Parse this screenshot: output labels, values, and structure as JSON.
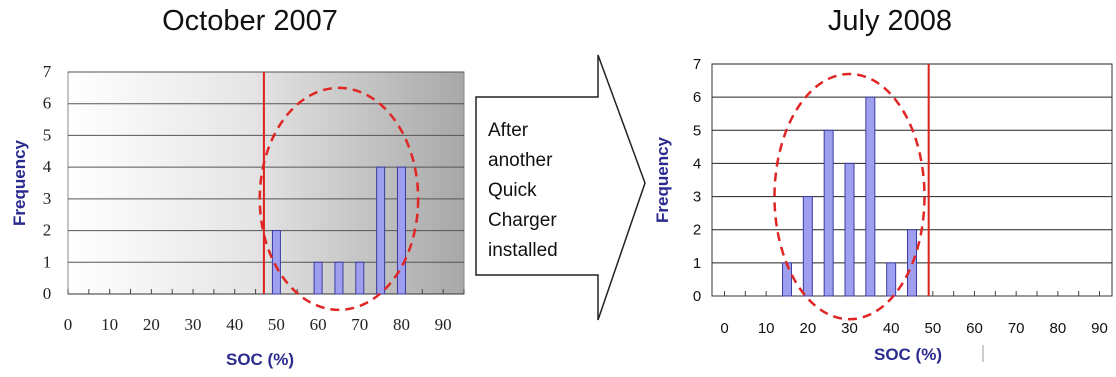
{
  "arrow_text": [
    "After",
    "another",
    "Quick",
    "Charger",
    "installed"
  ],
  "colors": {
    "bar_fill": "#9f9ff0",
    "bar_stroke": "#3b3ba0",
    "threshold": "#e0201b",
    "ellipse": "#e02525",
    "axis_label": "#2b2b8f"
  },
  "chart_data": [
    {
      "type": "bar",
      "title": "October 2007",
      "xlabel": "SOC (%)",
      "ylabel": "Frequency",
      "x": [
        50,
        60,
        65,
        70,
        75,
        80
      ],
      "values": [
        2,
        1,
        1,
        1,
        4,
        4
      ],
      "xticks": [
        0,
        10,
        20,
        30,
        40,
        50,
        60,
        70,
        80,
        90
      ],
      "yticks": [
        0,
        1,
        2,
        3,
        4,
        5,
        6,
        7
      ],
      "xlim": [
        0,
        95
      ],
      "ylim": [
        0,
        7
      ],
      "threshold_x": 47,
      "highlight_ellipse": {
        "cx": 65,
        "cy": 3,
        "rx": 19,
        "ry": 3.5
      },
      "background": "gradient white to gray",
      "grid": true
    },
    {
      "type": "bar",
      "title": "July 2008",
      "xlabel": "SOC (%)",
      "ylabel": "Frequency",
      "x": [
        15,
        20,
        25,
        30,
        35,
        40,
        45
      ],
      "values": [
        1,
        3,
        5,
        4,
        6,
        1,
        2
      ],
      "xticks": [
        0,
        10,
        20,
        30,
        40,
        50,
        60,
        70,
        80,
        90
      ],
      "yticks": [
        0,
        1,
        2,
        3,
        4,
        5,
        6,
        7
      ],
      "xlim": [
        -3,
        93
      ],
      "ylim": [
        0,
        7
      ],
      "threshold_x": 49,
      "highlight_ellipse": {
        "cx": 30,
        "cy": 3,
        "rx": 18,
        "ry": 3.7
      },
      "background": "white",
      "grid": true
    }
  ]
}
